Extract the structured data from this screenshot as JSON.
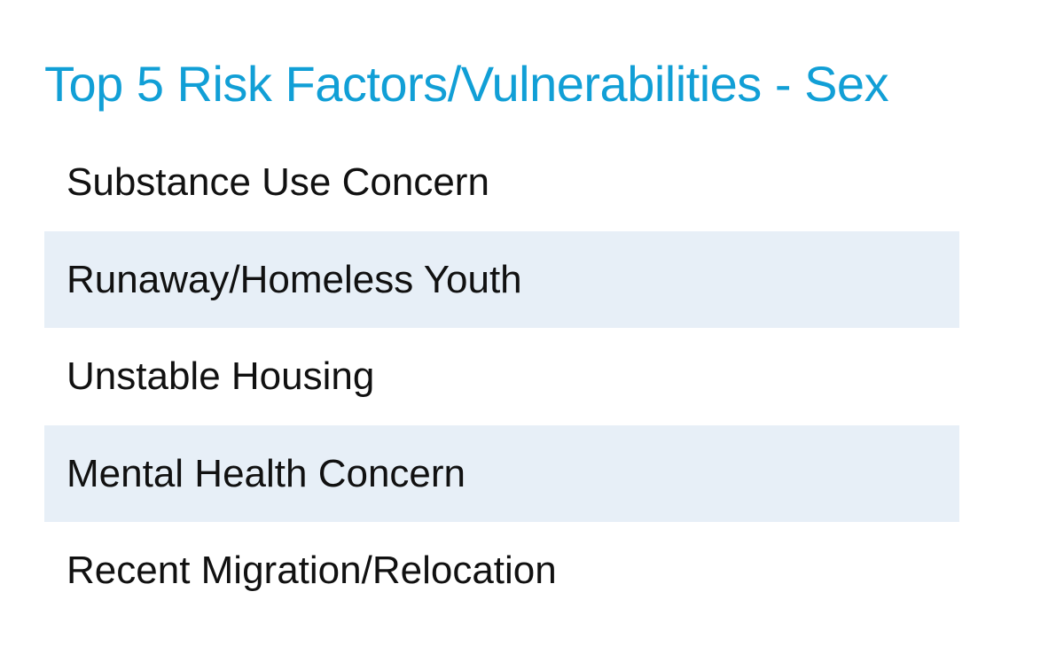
{
  "header": {
    "title": "Top 5 Risk Factors/Vulnerabilities - Sex"
  },
  "list": {
    "items": [
      "Substance Use Concern",
      "Runaway/Homeless Youth",
      "Unstable Housing",
      "Mental Health Concern",
      "Recent Migration/Relocation"
    ]
  }
}
